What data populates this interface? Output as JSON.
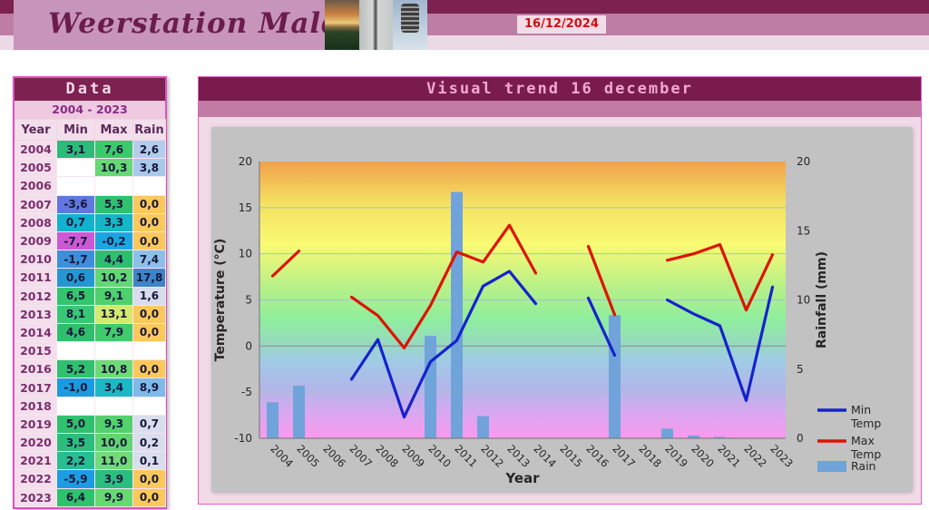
{
  "header": {
    "site_title": "Weerstation Malderen",
    "date": "16/12/2024"
  },
  "table": {
    "title": "Data",
    "subtitle": "2004 - 2023",
    "columns": [
      "Year",
      "Min",
      "Max",
      "Rain"
    ],
    "rows": [
      {
        "year": "2004",
        "min": "3,1",
        "max": "7,6",
        "rain": "2,6",
        "min_bg": "#2eba7a",
        "max_bg": "#3cc96e",
        "rain_bg": "#b5cdec"
      },
      {
        "year": "2005",
        "min": "",
        "max": "10,3",
        "rain": "3,8",
        "min_bg": "#ffffff",
        "max_bg": "#66d876",
        "rain_bg": "#a9c8eb"
      },
      {
        "year": "2006",
        "min": "",
        "max": "",
        "rain": "",
        "min_bg": "#ffffff",
        "max_bg": "#ffffff",
        "rain_bg": "#ffffff"
      },
      {
        "year": "2007",
        "min": "-3,6",
        "max": "5,3",
        "rain": "0,0",
        "min_bg": "#6177dd",
        "max_bg": "#30c170",
        "rain_bg": "#fbc85c"
      },
      {
        "year": "2008",
        "min": "0,7",
        "max": "3,3",
        "rain": "0,0",
        "min_bg": "#12b2cf",
        "max_bg": "#16b6c6",
        "rain_bg": "#fbc85c"
      },
      {
        "year": "2009",
        "min": "-7,7",
        "max": "-0,2",
        "rain": "0,0",
        "min_bg": "#cb59d3",
        "max_bg": "#1ba6e2",
        "rain_bg": "#fbc85c"
      },
      {
        "year": "2010",
        "min": "-1,7",
        "max": "4,4",
        "rain": "7,4",
        "min_bg": "#3e8ed9",
        "max_bg": "#2dbf70",
        "rain_bg": "#8cc0ea"
      },
      {
        "year": "2011",
        "min": "0,6",
        "max": "10,2",
        "rain": "17,8",
        "min_bg": "#2497d3",
        "max_bg": "#63d774",
        "rain_bg": "#3d85c8"
      },
      {
        "year": "2012",
        "min": "6,5",
        "max": "9,1",
        "rain": "1,6",
        "min_bg": "#33c46d",
        "max_bg": "#4fd06e",
        "rain_bg": "#d8dcec"
      },
      {
        "year": "2013",
        "min": "8,1",
        "max": "13,1",
        "rain": "0,0",
        "min_bg": "#38c873",
        "max_bg": "#d5e96f",
        "rain_bg": "#fbc85c"
      },
      {
        "year": "2014",
        "min": "4,6",
        "max": "7,9",
        "rain": "0,0",
        "min_bg": "#2fbe6d",
        "max_bg": "#41ca6e",
        "rain_bg": "#fbc85c"
      },
      {
        "year": "2015",
        "min": "",
        "max": "",
        "rain": "",
        "min_bg": "#ffffff",
        "max_bg": "#ffffff",
        "rain_bg": "#ffffff"
      },
      {
        "year": "2016",
        "min": "5,2",
        "max": "10,8",
        "rain": "0,0",
        "min_bg": "#30c06e",
        "max_bg": "#6eda78",
        "rain_bg": "#fbc85c"
      },
      {
        "year": "2017",
        "min": "-1,0",
        "max": "3,4",
        "rain": "8,9",
        "min_bg": "#1b9ae1",
        "max_bg": "#1cb9c4",
        "rain_bg": "#7fb9e9"
      },
      {
        "year": "2018",
        "min": "",
        "max": "",
        "rain": "",
        "min_bg": "#ffffff",
        "max_bg": "#ffffff",
        "rain_bg": "#ffffff"
      },
      {
        "year": "2019",
        "min": "5,0",
        "max": "9,3",
        "rain": "0,7",
        "min_bg": "#30c06e",
        "max_bg": "#52d16e",
        "rain_bg": "#dadded"
      },
      {
        "year": "2020",
        "min": "3,5",
        "max": "10,0",
        "rain": "0,2",
        "min_bg": "#2cbd7c",
        "max_bg": "#60d572",
        "rain_bg": "#dadded"
      },
      {
        "year": "2021",
        "min": "2,2",
        "max": "11,0",
        "rain": "0,1",
        "min_bg": "#29bd8f",
        "max_bg": "#72db79",
        "rain_bg": "#dadded"
      },
      {
        "year": "2022",
        "min": "-5,9",
        "max": "3,9",
        "rain": "0,0",
        "min_bg": "#1e9ce3",
        "max_bg": "#2abf80",
        "rain_bg": "#fbc85c"
      },
      {
        "year": "2023",
        "min": "6,4",
        "max": "9,9",
        "rain": "0,0",
        "min_bg": "#2fc26d",
        "max_bg": "#66d971",
        "rain_bg": "#fbc85c"
      }
    ]
  },
  "chart_data": {
    "type": "combo",
    "title": "Visual trend 16 december",
    "xlabel": "Year",
    "ylabel_left": "Temperature (°C)",
    "ylabel_right": "Rainfall (mm)",
    "categories": [
      "2004",
      "2005",
      "2006",
      "2007",
      "2008",
      "2009",
      "2010",
      "2011",
      "2012",
      "2013",
      "2014",
      "2015",
      "2016",
      "2017",
      "2018",
      "2019",
      "2020",
      "2021",
      "2022",
      "2023"
    ],
    "temp_axis": {
      "min": -10,
      "max": 20,
      "step": 5
    },
    "rain_axis": {
      "min": 0,
      "max": 20,
      "step": 5
    },
    "series": [
      {
        "name": "Min Temp",
        "type": "line",
        "color": "#1522cc",
        "axis": "left",
        "values": [
          3.1,
          null,
          null,
          -3.6,
          0.7,
          -7.7,
          -1.7,
          0.6,
          6.5,
          8.1,
          4.6,
          null,
          5.2,
          -1.0,
          null,
          5.0,
          3.5,
          2.2,
          -5.9,
          6.4
        ]
      },
      {
        "name": "Max Temp",
        "type": "line",
        "color": "#dd1400",
        "axis": "left",
        "values": [
          7.6,
          10.3,
          null,
          5.3,
          3.3,
          -0.2,
          4.4,
          10.2,
          9.1,
          13.1,
          7.9,
          null,
          10.8,
          3.4,
          null,
          9.3,
          10.0,
          11.0,
          3.9,
          9.9
        ]
      },
      {
        "name": "Rain",
        "type": "bar",
        "color": "#6fa3da",
        "axis": "right",
        "values": [
          2.6,
          3.8,
          null,
          0,
          0,
          0,
          7.4,
          17.8,
          1.6,
          0,
          0,
          null,
          0,
          8.9,
          null,
          0.7,
          0.2,
          0.1,
          0,
          0
        ]
      }
    ],
    "legend_position": "bottom-right",
    "grid": true
  }
}
